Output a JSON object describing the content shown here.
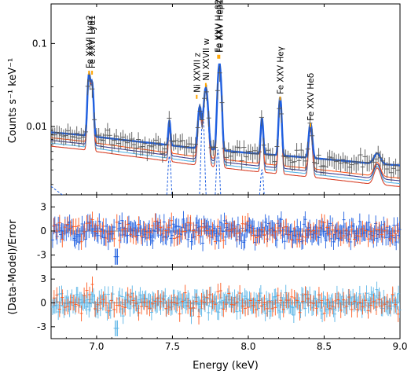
{
  "chart_data": {
    "type": "line",
    "panels": [
      {
        "id": "spectrum",
        "ylabel": "Counts s⁻¹ keV⁻¹",
        "yscale": "log",
        "ylim": [
          0.0015,
          0.3
        ],
        "yticks": [
          {
            "value": 0.01,
            "label": "0.01"
          },
          {
            "value": 0.1,
            "label": "0.1"
          }
        ],
        "line_annotations": [
          {
            "label": "Fe XXVI Lyα2",
            "energy": 6.95,
            "marker_value": 0.045
          },
          {
            "label": "Fe XXVI Lyα1",
            "energy": 6.97,
            "marker_value": 0.045
          },
          {
            "label": "Ni XXVII z",
            "energy": 7.66,
            "marker_value": 0.023
          },
          {
            "label": "Ni XXVII w",
            "energy": 7.72,
            "marker_value": 0.032
          },
          {
            "label": "Fe XXV Heβ2",
            "energy": 7.8,
            "marker_value": 0.07
          },
          {
            "label": "Fe XXV Heβ1",
            "energy": 7.81,
            "marker_value": 0.07
          },
          {
            "label": "Fe XXV Heγ",
            "energy": 8.21,
            "marker_value": 0.022
          },
          {
            "label": "Fe XXV Heδ",
            "energy": 8.41,
            "marker_value": 0.0105
          }
        ]
      },
      {
        "id": "residuals-1",
        "ylabel": "",
        "ylim": [
          -4.5,
          4.5
        ],
        "yticks": [
          {
            "value": 3,
            "label": "3"
          },
          {
            "value": 0,
            "label": "0"
          },
          {
            "value": -3,
            "label": "-3"
          }
        ]
      },
      {
        "id": "residuals-2",
        "ylabel": "",
        "ylim": [
          -4.5,
          4.5
        ],
        "yticks": [
          {
            "value": 3,
            "label": "3"
          },
          {
            "value": 0,
            "label": "0"
          },
          {
            "value": -3,
            "label": "-3"
          }
        ]
      }
    ],
    "shared_ylabel": "(Data-Model)/Error",
    "xlabel": "Energy (keV)",
    "xlim": [
      6.7,
      9.0
    ],
    "xticks": [
      {
        "value": 7.0,
        "label": "7.0"
      },
      {
        "value": 7.5,
        "label": "7.5"
      },
      {
        "value": 8.0,
        "label": "8.0"
      },
      {
        "value": 8.5,
        "label": "8.5"
      },
      {
        "value": 9.0,
        "label": "9.0"
      }
    ],
    "model_components": [
      {
        "color": "#1f5fe0",
        "continuum_offset": 1.0,
        "role": "total"
      },
      {
        "color": "#ff5a1f",
        "continuum_offset": 0.86,
        "role": "model"
      },
      {
        "color": "#3f3f8f",
        "continuum_offset": 0.8,
        "role": "model"
      },
      {
        "color": "#5ab4e6",
        "continuum_offset": 0.74,
        "role": "model"
      },
      {
        "color": "#d8432a",
        "continuum_offset": 0.68,
        "role": "model"
      }
    ],
    "continuum": [
      [
        6.7,
        0.0085
      ],
      [
        6.8,
        0.0082
      ],
      [
        6.9,
        0.0079
      ],
      [
        7.0,
        0.0075
      ],
      [
        7.2,
        0.0068
      ],
      [
        7.4,
        0.0062
      ],
      [
        7.6,
        0.0056
      ],
      [
        7.8,
        0.0052
      ],
      [
        8.0,
        0.0048
      ],
      [
        8.2,
        0.0045
      ],
      [
        8.4,
        0.0042
      ],
      [
        8.6,
        0.0039
      ],
      [
        8.8,
        0.0036
      ],
      [
        9.0,
        0.0034
      ]
    ],
    "emission_lines": [
      {
        "energy": 6.95,
        "amplitude": 0.035,
        "sigma": 0.008
      },
      {
        "energy": 6.97,
        "amplitude": 0.026,
        "sigma": 0.008
      },
      {
        "energy": 7.48,
        "amplitude": 0.006,
        "sigma": 0.006
      },
      {
        "energy": 7.68,
        "amplitude": 0.012,
        "sigma": 0.01
      },
      {
        "energy": 7.72,
        "amplitude": 0.024,
        "sigma": 0.012
      },
      {
        "energy": 7.81,
        "amplitude": 0.052,
        "sigma": 0.01
      },
      {
        "energy": 8.09,
        "amplitude": 0.008,
        "sigma": 0.007
      },
      {
        "energy": 8.21,
        "amplitude": 0.018,
        "sigma": 0.008
      },
      {
        "energy": 8.41,
        "amplitude": 0.0068,
        "sigma": 0.01
      },
      {
        "energy": 8.85,
        "amplitude": 0.0012,
        "sigma": 0.02
      }
    ],
    "data_color": "#555555",
    "residual_colors": {
      "panel1": [
        "#1f5fe0",
        "#ff5a1f"
      ],
      "panel2": [
        "#5ab4e6",
        "#ff5a1f"
      ]
    },
    "zero_line_color": "#888888"
  }
}
